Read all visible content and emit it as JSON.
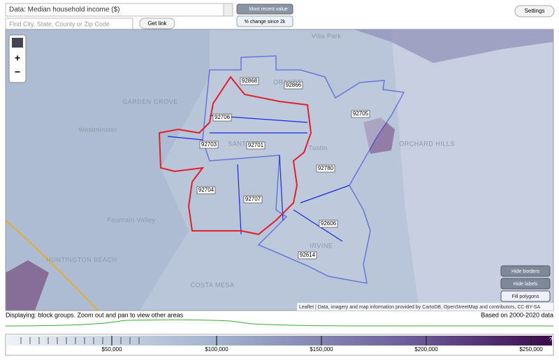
{
  "toolbar": {
    "data_select": "Data: Median household income ($)",
    "search_placeholder": "Find City, State, County or Zip Code",
    "get_link": "Get link",
    "most_recent": "Most recent value",
    "pct_change": "% change since 2k",
    "settings": "Settings"
  },
  "zoom": {
    "in": "+",
    "out": "−"
  },
  "places": [
    "Villa Park",
    "ORANGE",
    "GARDEN GROVE",
    "Westminster",
    "SANTA ANA",
    "Tustin",
    "ORCHARD HILLS",
    "Fountain Valley",
    "HUNTINGTON BEACH",
    "COSTA MESA",
    "IRVINE"
  ],
  "zips": [
    "92868",
    "92866",
    "92706",
    "92705",
    "92703",
    "92701",
    "92780",
    "92704",
    "92707",
    "92606",
    "92614"
  ],
  "map_buttons": [
    "Hide borders",
    "Hide labels",
    "Fill polygons"
  ],
  "attribution": "Leaflet | Data, imagery and map information provided by CartoDB, OpenStreetMap and contributors, CC-BY-SA",
  "status": "Displaying: block groups. Zoom out and pan to view other areas",
  "based_on": "Based on 2000-2020 data",
  "legend": {
    "range": [
      0,
      260000
    ],
    "ticks": [
      {
        "value": 50000,
        "label": "$50,000"
      },
      {
        "value": 100000,
        "label": "$100,000"
      },
      {
        "value": 150000,
        "label": "$150,000"
      },
      {
        "value": 200000,
        "label": "$200,000"
      },
      {
        "value": 250000,
        "label": "$250,000"
      }
    ],
    "help": "?"
  }
}
